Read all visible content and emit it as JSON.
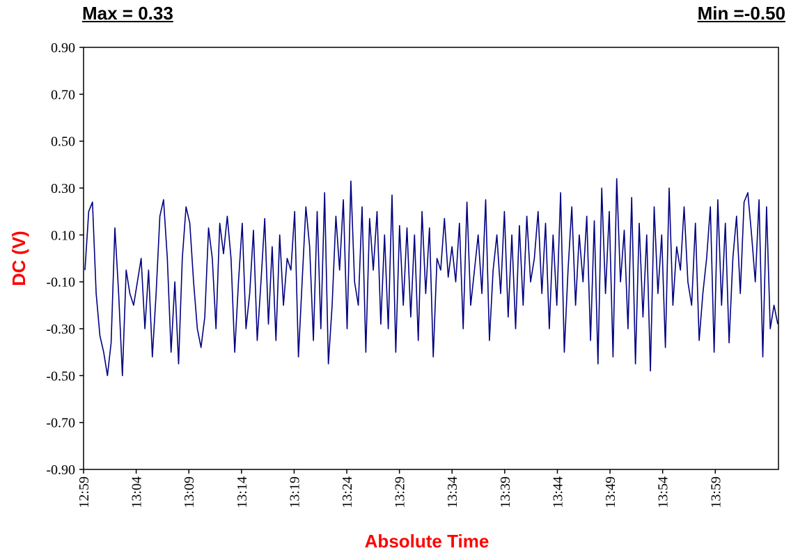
{
  "header": {
    "max_text": "Max = 0.33",
    "min_text": "Min =-0.50"
  },
  "chart_data": {
    "type": "line",
    "xlabel": "Absolute Time",
    "ylabel": "DC (V)",
    "ylim": [
      -0.9,
      0.9
    ],
    "yticks": [
      "0.90",
      "0.70",
      "0.50",
      "0.30",
      "0.10",
      "-0.10",
      "-0.30",
      "-0.50",
      "-0.70",
      "-0.90"
    ],
    "xlim_minutes": [
      0,
      66
    ],
    "xticks": [
      "12:59",
      "13:04",
      "13:09",
      "13:14",
      "13:19",
      "13:24",
      "13:29",
      "13:34",
      "13:39",
      "13:44",
      "13:49",
      "13:54",
      "13:59"
    ],
    "grid": false,
    "legend": "none",
    "colors": {
      "line": "#000080",
      "axis_title": "#ff0000"
    },
    "series": [
      {
        "values": [
          -0.05,
          0.2,
          0.24,
          -0.15,
          -0.33,
          -0.4,
          -0.5,
          -0.36,
          0.13,
          -0.15,
          -0.5,
          -0.05,
          -0.15,
          -0.2,
          -0.1,
          0.0,
          -0.3,
          -0.05,
          -0.42,
          -0.15,
          0.18,
          0.25,
          0.0,
          -0.4,
          -0.1,
          -0.45,
          0.0,
          0.22,
          0.15,
          -0.1,
          -0.3,
          -0.38,
          -0.25,
          0.13,
          0.0,
          -0.3,
          0.15,
          0.02,
          0.18,
          0.0,
          -0.4,
          -0.1,
          0.15,
          -0.3,
          -0.15,
          0.12,
          -0.35,
          -0.1,
          0.17,
          -0.28,
          0.05,
          -0.35,
          0.1,
          -0.2,
          0.0,
          -0.05,
          0.2,
          -0.42,
          -0.1,
          0.22,
          0.05,
          -0.35,
          0.2,
          -0.3,
          0.28,
          -0.45,
          -0.2,
          0.18,
          -0.05,
          0.25,
          -0.3,
          0.33,
          -0.1,
          -0.2,
          0.22,
          -0.4,
          0.17,
          -0.05,
          0.2,
          -0.28,
          0.1,
          -0.3,
          0.27,
          -0.4,
          0.14,
          -0.2,
          0.13,
          -0.25,
          0.1,
          -0.35,
          0.2,
          -0.15,
          0.13,
          -0.42,
          0.0,
          -0.05,
          0.17,
          -0.08,
          0.05,
          -0.1,
          0.15,
          -0.3,
          0.24,
          -0.2,
          -0.05,
          0.1,
          -0.15,
          0.25,
          -0.35,
          -0.05,
          0.1,
          -0.15,
          0.2,
          -0.25,
          0.1,
          -0.3,
          0.14,
          -0.2,
          0.18,
          -0.1,
          0.0,
          0.2,
          -0.15,
          0.15,
          -0.3,
          0.1,
          -0.2,
          0.28,
          -0.4,
          -0.05,
          0.22,
          -0.2,
          0.1,
          -0.1,
          0.18,
          -0.35,
          0.16,
          -0.45,
          0.3,
          -0.15,
          0.2,
          -0.42,
          0.34,
          -0.1,
          0.12,
          -0.3,
          0.26,
          -0.45,
          0.15,
          -0.25,
          0.1,
          -0.48,
          0.22,
          -0.15,
          0.1,
          -0.38,
          0.3,
          -0.2,
          0.05,
          -0.05,
          0.22,
          -0.1,
          -0.2,
          0.15,
          -0.35,
          -0.15,
          0.0,
          0.22,
          -0.4,
          0.25,
          -0.2,
          0.15,
          -0.36,
          0.0,
          0.18,
          -0.15,
          0.24,
          0.28,
          0.1,
          -0.1,
          0.25,
          -0.42,
          0.22,
          -0.3,
          -0.2,
          -0.28
        ]
      }
    ]
  }
}
